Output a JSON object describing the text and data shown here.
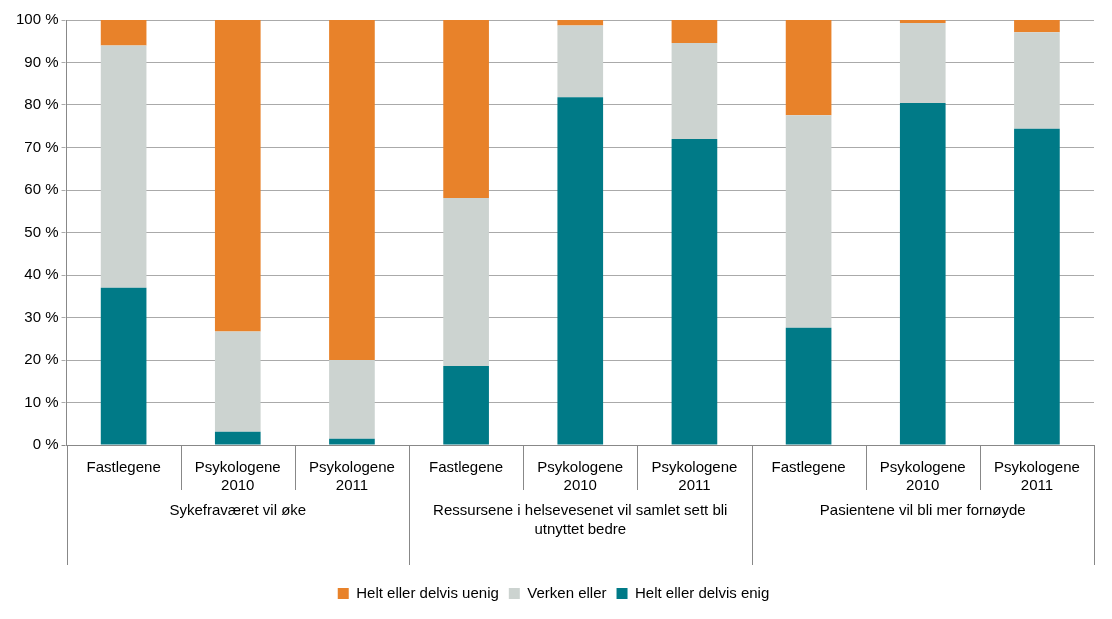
{
  "chart_data": {
    "type": "bar",
    "stacked": true,
    "categories": [
      "Fastlegene",
      "Psykologene\n2010",
      "Psykologene\n2011",
      "Fastlegene",
      "Psykologene\n2010",
      "Psykologene\n2011",
      "Fastlegene",
      "Psykologene\n2010",
      "Psykologene\n2011"
    ],
    "annotations": [
      "Sykefraværet vil øke",
      "Ressursene i helsevesenet vil samlet sett bli utnyttet bedre",
      "Pasientene vil bli mer fornøyde"
    ],
    "series": [
      {
        "name": "Helt eller delvis enig",
        "color": "#007a87",
        "values": [
          37,
          3.1,
          1.5,
          18.6,
          81.8,
          72,
          27.6,
          80.5,
          74.4
        ]
      },
      {
        "name": "Verken eller",
        "color": "#ccd3d0",
        "values": [
          57,
          23.6,
          18.5,
          39.5,
          16.9,
          22.6,
          50,
          18.8,
          22.7
        ]
      },
      {
        "name": "Helt eller delvis uenig",
        "color": "#e8822a",
        "values": [
          6,
          73.3,
          80,
          41.9,
          1.3,
          5.4,
          22.4,
          0.7,
          2.9
        ]
      }
    ],
    "ylim": [
      0,
      100
    ],
    "yticks": [
      {
        "value": 0,
        "label": "0 %"
      },
      {
        "value": 10,
        "label": "10 %"
      },
      {
        "value": 20,
        "label": "20 %"
      },
      {
        "value": 30,
        "label": "30 %"
      },
      {
        "value": 40,
        "label": "40 %"
      },
      {
        "value": 50,
        "label": "50 %"
      },
      {
        "value": 60,
        "label": "60 %"
      },
      {
        "value": 70,
        "label": "70 %"
      },
      {
        "value": 80,
        "label": "80 %"
      },
      {
        "value": 90,
        "label": "90 %"
      },
      {
        "value": 100,
        "label": "100 %"
      }
    ],
    "grid": "y",
    "legend": "bottom"
  }
}
